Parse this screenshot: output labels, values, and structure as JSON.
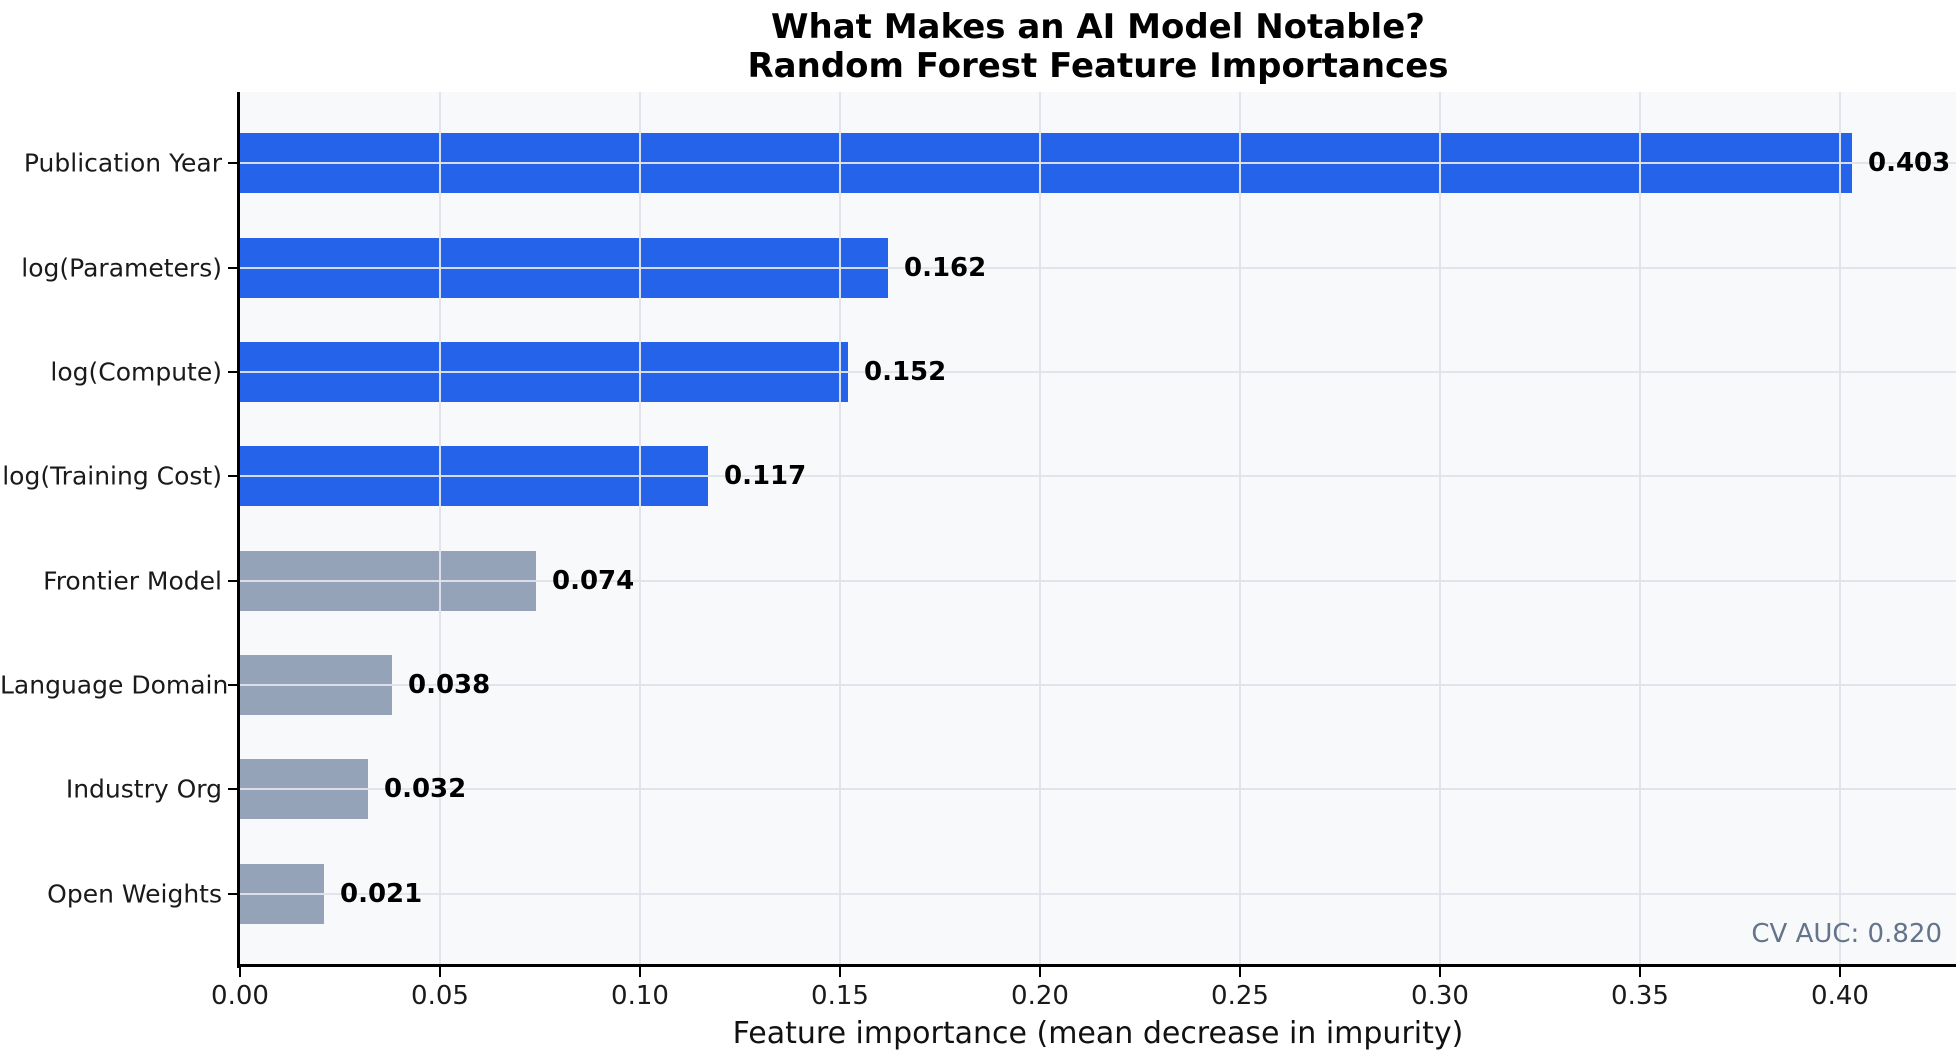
{
  "chart_data": {
    "type": "bar",
    "orientation": "horizontal",
    "title_line1": "What Makes an AI Model Notable?",
    "title_line2": "Random Forest Feature Importances",
    "xlabel": "Feature importance (mean decrease in impurity)",
    "categories": [
      "Publication Year",
      "log(Parameters)",
      "log(Compute)",
      "log(Training Cost)",
      "Frontier Model",
      "Language Domain",
      "Industry Org",
      "Open Weights"
    ],
    "values": [
      0.403,
      0.162,
      0.152,
      0.117,
      0.074,
      0.038,
      0.032,
      0.021
    ],
    "value_labels": [
      "0.403",
      "0.162",
      "0.152",
      "0.117",
      "0.074",
      "0.038",
      "0.032",
      "0.021"
    ],
    "bar_colors": [
      "#2563eb",
      "#2563eb",
      "#2563eb",
      "#2563eb",
      "#94a3b8",
      "#94a3b8",
      "#94a3b8",
      "#94a3b8"
    ],
    "x_ticks": [
      0.0,
      0.05,
      0.1,
      0.15,
      0.2,
      0.25,
      0.3,
      0.35,
      0.4
    ],
    "x_tick_labels": [
      "0.00",
      "0.05",
      "0.10",
      "0.15",
      "0.20",
      "0.25",
      "0.30",
      "0.35",
      "0.40"
    ],
    "xlim": [
      0,
      0.429
    ],
    "annotation": "CV AUC: 0.820",
    "grid": true,
    "legend": false,
    "colors": {
      "blue_bar": "#2563eb",
      "gray_bar": "#94a3b8",
      "plot_background": "#f8f9fa",
      "gridline": "#dfe3ea",
      "annotation_text": "#64748b",
      "spine": "#000000"
    }
  }
}
